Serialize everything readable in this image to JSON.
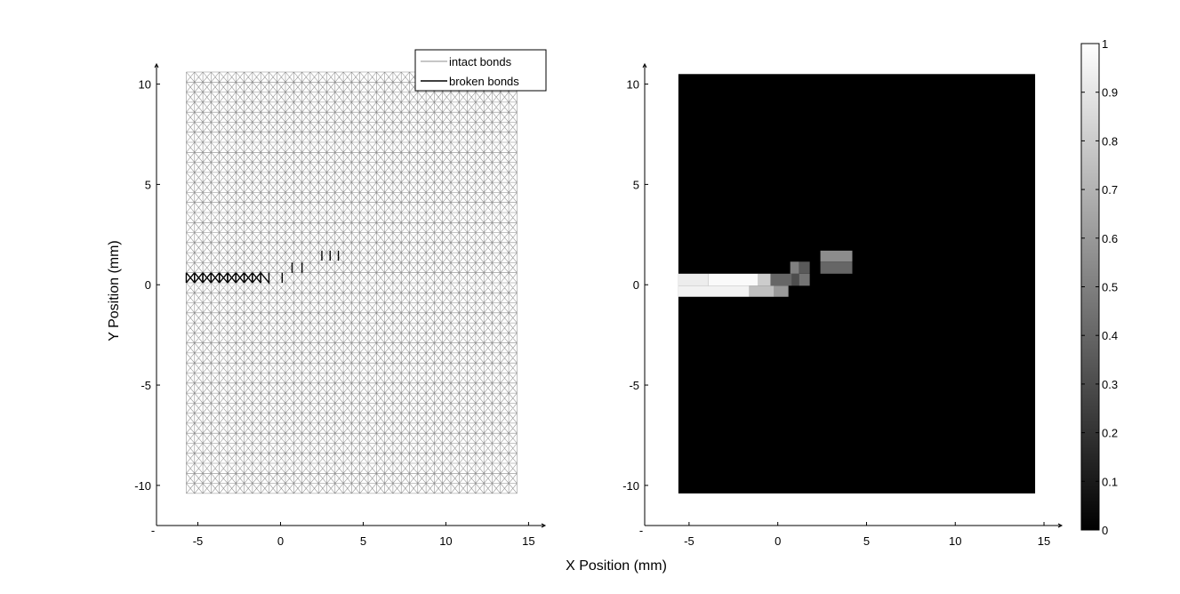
{
  "chart_data": [
    {
      "type": "scatter",
      "subtype": "bond-lattice",
      "xlabel": "X Position (mm)",
      "ylabel": "Y Position (mm)",
      "xlim": [
        -7.5,
        16
      ],
      "ylim": [
        -12,
        11
      ],
      "xticks": [
        "-5",
        "0",
        "5",
        "10",
        "15"
      ],
      "yticks": [
        "-10",
        "-5",
        "0",
        "5",
        "10"
      ],
      "lattice": {
        "x_range": [
          -5.7,
          14.6
        ],
        "y_range": [
          -10.4,
          10.6
        ],
        "spacing": 0.5
      },
      "series": [
        {
          "name": "intact bonds",
          "color": "#8c8c8c"
        },
        {
          "name": "broken bonds",
          "color": "#000000"
        }
      ],
      "broken_bonds": [
        {
          "type": "x",
          "x0": -5.7,
          "x1": -5.2,
          "y0": 0.1,
          "y1": 0.6
        },
        {
          "type": "x",
          "x0": -5.2,
          "x1": -4.7,
          "y0": 0.1,
          "y1": 0.6
        },
        {
          "type": "x",
          "x0": -4.7,
          "x1": -4.2,
          "y0": 0.1,
          "y1": 0.6
        },
        {
          "type": "x",
          "x0": -4.2,
          "x1": -3.7,
          "y0": 0.1,
          "y1": 0.6
        },
        {
          "type": "x",
          "x0": -3.7,
          "x1": -3.2,
          "y0": 0.1,
          "y1": 0.6
        },
        {
          "type": "x",
          "x0": -3.2,
          "x1": -2.7,
          "y0": 0.1,
          "y1": 0.6
        },
        {
          "type": "x",
          "x0": -2.7,
          "x1": -2.2,
          "y0": 0.1,
          "y1": 0.6
        },
        {
          "type": "x",
          "x0": -2.2,
          "x1": -1.7,
          "y0": 0.1,
          "y1": 0.6
        },
        {
          "type": "x",
          "x0": -1.7,
          "x1": -1.2,
          "y0": 0.1,
          "y1": 0.6
        },
        {
          "type": "n",
          "x0": -1.2,
          "x1": -0.7,
          "y0": 0.1,
          "y1": 0.6
        },
        {
          "type": "v",
          "x0": 0.1,
          "x1": 0.1,
          "y0": 0.1,
          "y1": 0.6
        },
        {
          "type": "v",
          "x0": 0.7,
          "x1": 0.7,
          "y0": 0.6,
          "y1": 1.1
        },
        {
          "type": "v",
          "x0": 1.3,
          "x1": 1.3,
          "y0": 0.6,
          "y1": 1.1
        },
        {
          "type": "v",
          "x0": 2.5,
          "x1": 2.5,
          "y0": 1.2,
          "y1": 1.7
        },
        {
          "type": "v",
          "x0": 3.0,
          "x1": 3.0,
          "y0": 1.2,
          "y1": 1.7
        },
        {
          "type": "v",
          "x0": 3.5,
          "x1": 3.5,
          "y0": 1.2,
          "y1": 1.7
        }
      ]
    },
    {
      "type": "heatmap",
      "xlim": [
        -7.5,
        16
      ],
      "ylim": [
        -12,
        11
      ],
      "xticks": [
        "-5",
        "0",
        "5",
        "10",
        "15"
      ],
      "yticks": [
        "-10",
        "-5",
        "0",
        "5",
        "10"
      ],
      "extent": {
        "x": [
          -5.6,
          14.5
        ],
        "y": [
          -10.4,
          10.5
        ]
      },
      "background_value": 0,
      "colorbar": {
        "min": 0,
        "max": 1,
        "ticks": [
          "0",
          "0.1",
          "0.2",
          "0.3",
          "0.4",
          "0.5",
          "0.6",
          "0.7",
          "0.8",
          "0.9",
          "1"
        ]
      },
      "cells": [
        {
          "x0": -5.6,
          "x1": -3.9,
          "y0": -0.05,
          "y1": 0.55,
          "v": 0.93
        },
        {
          "x0": -3.9,
          "x1": -1.1,
          "y0": -0.05,
          "y1": 0.55,
          "v": 0.98
        },
        {
          "x0": -1.1,
          "x1": -0.4,
          "y0": -0.05,
          "y1": 0.55,
          "v": 0.8
        },
        {
          "x0": -0.4,
          "x1": 0.8,
          "y0": -0.05,
          "y1": 0.55,
          "v": 0.4
        },
        {
          "x0": 0.8,
          "x1": 1.2,
          "y0": -0.05,
          "y1": 0.55,
          "v": 0.3
        },
        {
          "x0": 1.2,
          "x1": 1.8,
          "y0": -0.05,
          "y1": 0.55,
          "v": 0.45
        },
        {
          "x0": -5.6,
          "x1": -1.6,
          "y0": -0.6,
          "y1": -0.05,
          "v": 0.95
        },
        {
          "x0": -1.6,
          "x1": -0.2,
          "y0": -0.6,
          "y1": -0.05,
          "v": 0.75
        },
        {
          "x0": -0.2,
          "x1": 0.6,
          "y0": -0.6,
          "y1": -0.05,
          "v": 0.6
        },
        {
          "x0": 0.7,
          "x1": 1.2,
          "y0": 0.55,
          "y1": 1.15,
          "v": 0.5
        },
        {
          "x0": 1.2,
          "x1": 1.8,
          "y0": 0.55,
          "y1": 1.15,
          "v": 0.35
        },
        {
          "x0": 2.4,
          "x1": 4.2,
          "y0": 1.15,
          "y1": 1.7,
          "v": 0.55
        },
        {
          "x0": 2.4,
          "x1": 4.2,
          "y0": 0.55,
          "y1": 1.15,
          "v": 0.4
        }
      ]
    }
  ]
}
